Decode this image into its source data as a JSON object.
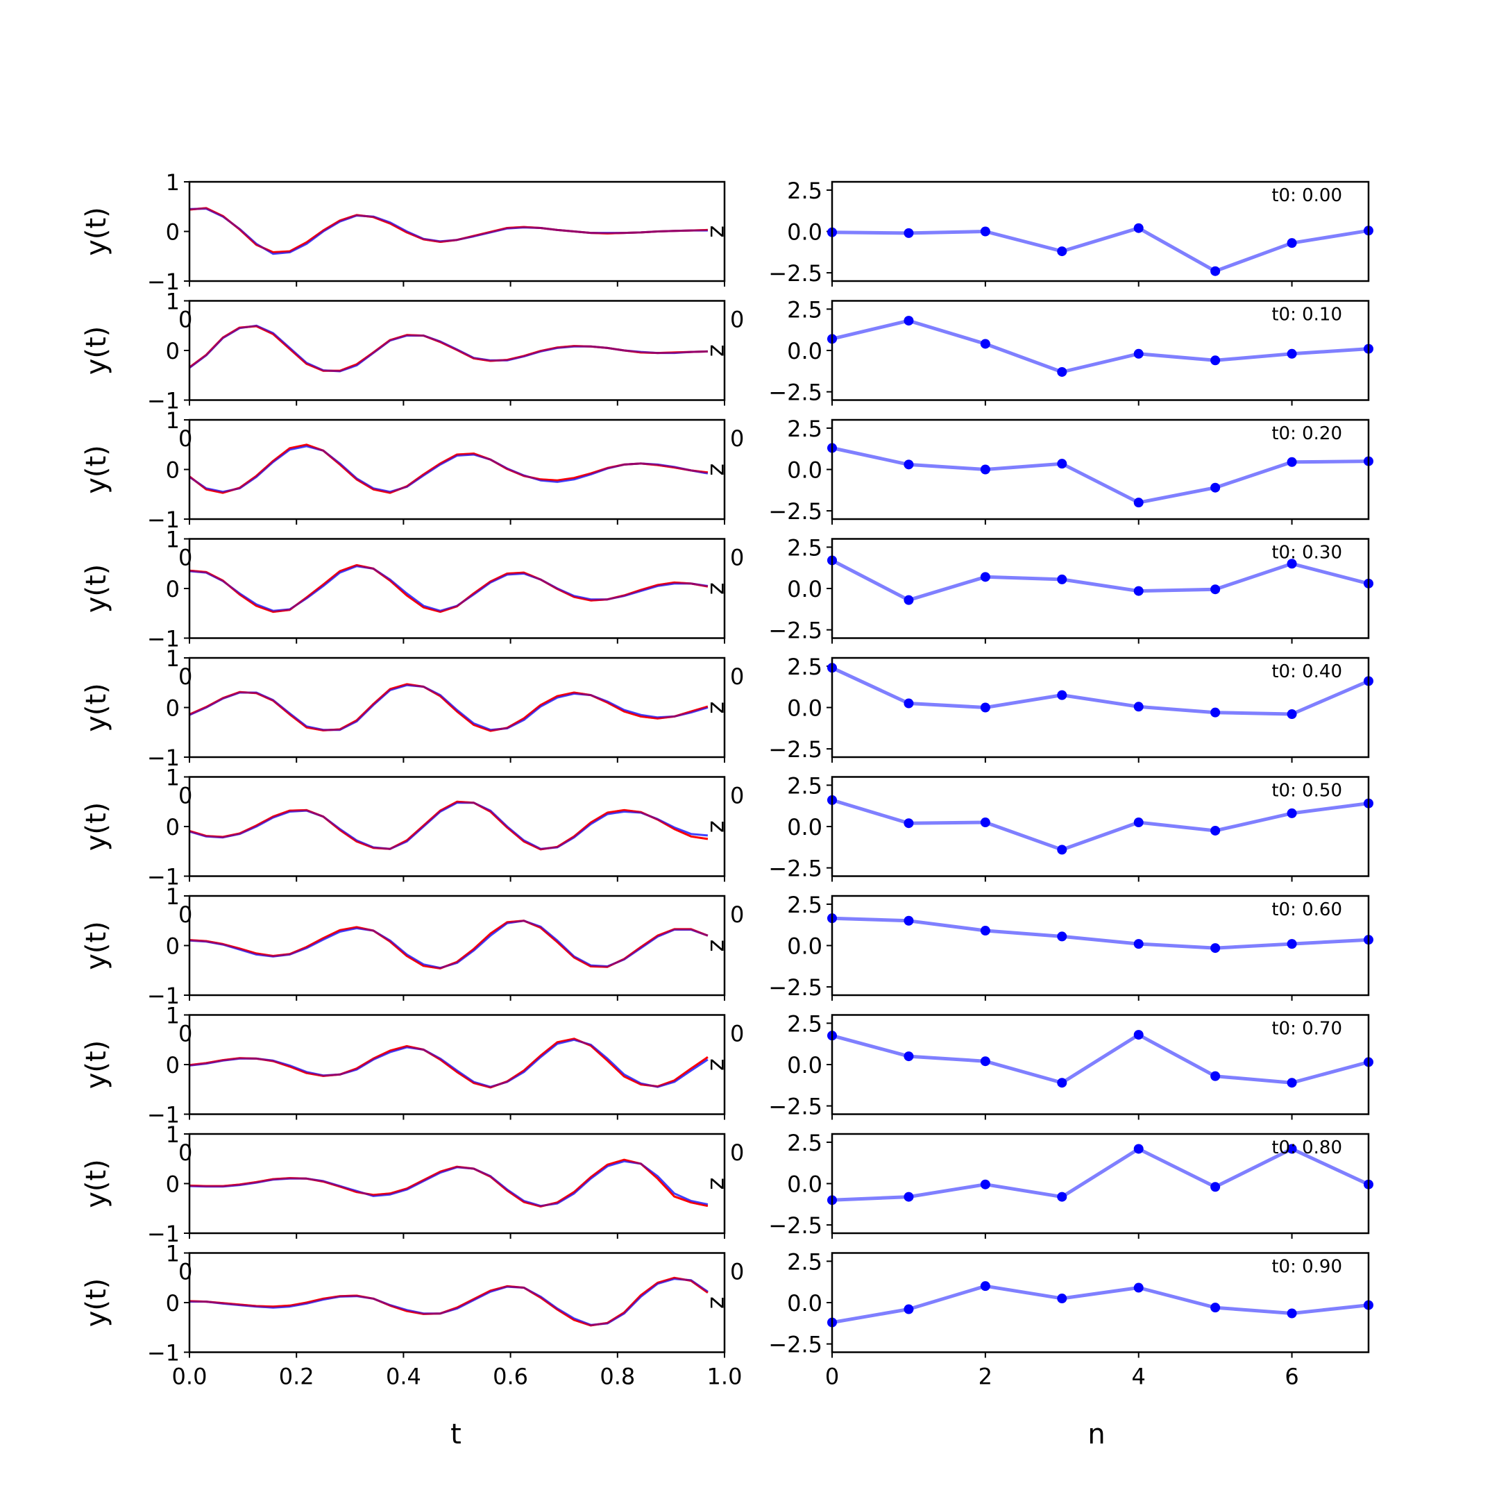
{
  "chart_data": [
    {
      "type": "line",
      "title": "",
      "xlabel": "t",
      "ylabel": "y(t)",
      "right_axis_label": "z",
      "x": [
        0.0,
        0.03125,
        0.0625,
        0.09375,
        0.125,
        0.15625,
        0.1875,
        0.21875,
        0.25,
        0.28125,
        0.3125,
        0.34375,
        0.375,
        0.40625,
        0.4375,
        0.46875,
        0.5,
        0.53125,
        0.5625,
        0.59375,
        0.625,
        0.65625,
        0.6875,
        0.71875,
        0.75,
        0.78125,
        0.8125,
        0.84375,
        0.875,
        0.90625,
        0.9375,
        0.96875
      ],
      "xlim": [
        0.0,
        1.0
      ],
      "ylim": [
        -1,
        1
      ],
      "xticks": [
        "0.0",
        "0.2",
        "0.4",
        "0.6",
        "0.8",
        "1.0"
      ],
      "yticks": [
        "-1",
        "0",
        "1"
      ],
      "series_colors": {
        "true": "#0000ff",
        "predicted": "#ff0000"
      },
      "panels": [
        {
          "true": [
            0.45,
            0.46,
            0.3,
            0.05,
            -0.25,
            -0.45,
            -0.42,
            -0.25,
            0.0,
            0.2,
            0.32,
            0.3,
            0.18,
            0.0,
            -0.15,
            -0.2,
            -0.17,
            -0.1,
            -0.02,
            0.06,
            0.08,
            0.07,
            0.03,
            0.0,
            -0.03,
            -0.03,
            -0.03,
            -0.02,
            0.0,
            0.01,
            0.02,
            0.02
          ],
          "predicted": [
            0.44,
            0.47,
            0.31,
            0.04,
            -0.27,
            -0.42,
            -0.4,
            -0.22,
            0.02,
            0.22,
            0.33,
            0.29,
            0.16,
            -0.02,
            -0.16,
            -0.21,
            -0.17,
            -0.09,
            -0.01,
            0.07,
            0.09,
            0.07,
            0.03,
            0.0,
            -0.03,
            -0.04,
            -0.03,
            -0.02,
            0.0,
            0.01,
            0.02,
            0.03
          ]
        },
        {
          "true": [
            -0.35,
            -0.1,
            0.25,
            0.45,
            0.5,
            0.35,
            0.05,
            -0.25,
            -0.4,
            -0.42,
            -0.3,
            -0.05,
            0.2,
            0.3,
            0.3,
            0.18,
            0.02,
            -0.15,
            -0.2,
            -0.2,
            -0.12,
            -0.02,
            0.05,
            0.08,
            0.08,
            0.05,
            0.0,
            -0.03,
            -0.05,
            -0.05,
            -0.03,
            -0.02
          ],
          "predicted": [
            -0.34,
            -0.09,
            0.26,
            0.46,
            0.49,
            0.33,
            0.03,
            -0.27,
            -0.41,
            -0.41,
            -0.28,
            -0.04,
            0.21,
            0.31,
            0.3,
            0.17,
            0.01,
            -0.16,
            -0.21,
            -0.19,
            -0.11,
            -0.01,
            0.06,
            0.09,
            0.08,
            0.05,
            0.0,
            -0.04,
            -0.05,
            -0.04,
            -0.03,
            -0.02
          ]
        },
        {
          "true": [
            -0.15,
            -0.38,
            -0.45,
            -0.38,
            -0.15,
            0.15,
            0.4,
            0.47,
            0.38,
            0.12,
            -0.18,
            -0.38,
            -0.45,
            -0.35,
            -0.12,
            0.1,
            0.28,
            0.3,
            0.2,
            0.02,
            -0.12,
            -0.22,
            -0.25,
            -0.2,
            -0.1,
            0.02,
            0.1,
            0.12,
            0.1,
            0.05,
            -0.02,
            -0.08
          ],
          "predicted": [
            -0.14,
            -0.4,
            -0.47,
            -0.37,
            -0.13,
            0.17,
            0.43,
            0.5,
            0.38,
            0.1,
            -0.2,
            -0.4,
            -0.47,
            -0.34,
            -0.1,
            0.12,
            0.3,
            0.32,
            0.2,
            0.01,
            -0.13,
            -0.2,
            -0.22,
            -0.17,
            -0.08,
            0.03,
            0.1,
            0.12,
            0.09,
            0.04,
            -0.02,
            -0.06
          ]
        },
        {
          "true": [
            0.35,
            0.32,
            0.15,
            -0.1,
            -0.32,
            -0.45,
            -0.42,
            -0.2,
            0.05,
            0.32,
            0.45,
            0.4,
            0.18,
            -0.1,
            -0.35,
            -0.45,
            -0.35,
            -0.12,
            0.12,
            0.28,
            0.3,
            0.18,
            0.0,
            -0.15,
            -0.22,
            -0.22,
            -0.15,
            -0.05,
            0.05,
            0.1,
            0.1,
            0.05
          ],
          "predicted": [
            0.36,
            0.33,
            0.16,
            -0.12,
            -0.35,
            -0.47,
            -0.43,
            -0.18,
            0.08,
            0.35,
            0.47,
            0.4,
            0.16,
            -0.14,
            -0.38,
            -0.47,
            -0.36,
            -0.1,
            0.14,
            0.3,
            0.32,
            0.18,
            -0.01,
            -0.17,
            -0.24,
            -0.22,
            -0.14,
            -0.03,
            0.07,
            0.12,
            0.1,
            0.04
          ]
        },
        {
          "true": [
            -0.15,
            0.0,
            0.18,
            0.3,
            0.3,
            0.15,
            -0.12,
            -0.38,
            -0.45,
            -0.45,
            -0.28,
            0.05,
            0.35,
            0.45,
            0.42,
            0.25,
            -0.05,
            -0.32,
            -0.45,
            -0.42,
            -0.25,
            0.02,
            0.2,
            0.28,
            0.25,
            0.12,
            -0.05,
            -0.15,
            -0.2,
            -0.18,
            -0.1,
            0.0
          ],
          "predicted": [
            -0.14,
            0.01,
            0.19,
            0.31,
            0.29,
            0.14,
            -0.14,
            -0.4,
            -0.46,
            -0.44,
            -0.26,
            0.07,
            0.37,
            0.47,
            0.42,
            0.23,
            -0.08,
            -0.35,
            -0.47,
            -0.41,
            -0.22,
            0.05,
            0.23,
            0.3,
            0.25,
            0.1,
            -0.08,
            -0.18,
            -0.22,
            -0.18,
            -0.08,
            0.02
          ]
        },
        {
          "true": [
            -0.1,
            -0.2,
            -0.22,
            -0.15,
            0.0,
            0.18,
            0.3,
            0.32,
            0.2,
            -0.05,
            -0.28,
            -0.42,
            -0.45,
            -0.3,
            0.0,
            0.3,
            0.48,
            0.48,
            0.32,
            0.0,
            -0.28,
            -0.45,
            -0.42,
            -0.22,
            0.05,
            0.25,
            0.3,
            0.28,
            0.15,
            -0.02,
            -0.15,
            -0.18
          ],
          "predicted": [
            -0.09,
            -0.19,
            -0.21,
            -0.14,
            0.02,
            0.2,
            0.32,
            0.33,
            0.2,
            -0.07,
            -0.3,
            -0.43,
            -0.45,
            -0.28,
            0.02,
            0.32,
            0.5,
            0.48,
            0.3,
            -0.02,
            -0.3,
            -0.46,
            -0.41,
            -0.2,
            0.08,
            0.28,
            0.33,
            0.29,
            0.14,
            -0.05,
            -0.2,
            -0.25
          ]
        },
        {
          "true": [
            0.1,
            0.08,
            0.02,
            -0.08,
            -0.18,
            -0.22,
            -0.18,
            -0.05,
            0.12,
            0.28,
            0.35,
            0.3,
            0.1,
            -0.18,
            -0.38,
            -0.45,
            -0.35,
            -0.1,
            0.2,
            0.45,
            0.5,
            0.38,
            0.1,
            -0.22,
            -0.4,
            -0.42,
            -0.28,
            -0.05,
            0.18,
            0.32,
            0.32,
            0.2
          ],
          "predicted": [
            0.11,
            0.09,
            0.03,
            -0.06,
            -0.16,
            -0.21,
            -0.17,
            -0.03,
            0.15,
            0.31,
            0.37,
            0.3,
            0.08,
            -0.21,
            -0.41,
            -0.46,
            -0.33,
            -0.07,
            0.24,
            0.47,
            0.5,
            0.36,
            0.07,
            -0.24,
            -0.42,
            -0.43,
            -0.27,
            -0.03,
            0.2,
            0.33,
            0.33,
            0.2
          ]
        },
        {
          "true": [
            -0.02,
            0.02,
            0.08,
            0.12,
            0.12,
            0.08,
            -0.02,
            -0.15,
            -0.22,
            -0.2,
            -0.1,
            0.1,
            0.25,
            0.35,
            0.3,
            0.12,
            -0.12,
            -0.35,
            -0.45,
            -0.35,
            -0.15,
            0.15,
            0.42,
            0.5,
            0.4,
            0.12,
            -0.2,
            -0.38,
            -0.45,
            -0.35,
            -0.12,
            0.1
          ],
          "predicted": [
            -0.01,
            0.03,
            0.09,
            0.13,
            0.12,
            0.07,
            -0.04,
            -0.17,
            -0.23,
            -0.2,
            -0.08,
            0.12,
            0.28,
            0.37,
            0.3,
            0.1,
            -0.15,
            -0.37,
            -0.46,
            -0.34,
            -0.12,
            0.18,
            0.45,
            0.52,
            0.38,
            0.08,
            -0.24,
            -0.4,
            -0.44,
            -0.32,
            -0.08,
            0.15
          ]
        },
        {
          "true": [
            -0.05,
            -0.06,
            -0.06,
            -0.03,
            0.02,
            0.08,
            0.1,
            0.1,
            0.05,
            -0.05,
            -0.15,
            -0.25,
            -0.22,
            -0.12,
            0.05,
            0.22,
            0.33,
            0.3,
            0.15,
            -0.12,
            -0.35,
            -0.45,
            -0.4,
            -0.2,
            0.1,
            0.35,
            0.45,
            0.4,
            0.15,
            -0.2,
            -0.35,
            -0.42
          ],
          "predicted": [
            -0.04,
            -0.05,
            -0.05,
            -0.02,
            0.03,
            0.09,
            0.11,
            0.1,
            0.04,
            -0.06,
            -0.17,
            -0.23,
            -0.2,
            -0.1,
            0.07,
            0.24,
            0.34,
            0.3,
            0.14,
            -0.14,
            -0.37,
            -0.46,
            -0.38,
            -0.17,
            0.13,
            0.38,
            0.48,
            0.4,
            0.1,
            -0.26,
            -0.38,
            -0.45
          ]
        },
        {
          "true": [
            0.02,
            0.02,
            -0.02,
            -0.05,
            -0.08,
            -0.1,
            -0.08,
            -0.02,
            0.06,
            0.12,
            0.13,
            0.08,
            -0.05,
            -0.15,
            -0.22,
            -0.22,
            -0.12,
            0.05,
            0.22,
            0.32,
            0.3,
            0.12,
            -0.12,
            -0.32,
            -0.45,
            -0.42,
            -0.22,
            0.12,
            0.38,
            0.48,
            0.45,
            0.22
          ],
          "predicted": [
            0.03,
            0.02,
            -0.01,
            -0.04,
            -0.07,
            -0.08,
            -0.06,
            0.0,
            0.08,
            0.13,
            0.14,
            0.08,
            -0.06,
            -0.17,
            -0.23,
            -0.22,
            -0.1,
            0.07,
            0.24,
            0.33,
            0.3,
            0.1,
            -0.14,
            -0.35,
            -0.46,
            -0.41,
            -0.2,
            0.15,
            0.4,
            0.5,
            0.44,
            0.2
          ]
        }
      ]
    },
    {
      "type": "line",
      "title": "",
      "xlabel": "n",
      "ylabel": "",
      "x": [
        0,
        1,
        2,
        3,
        4,
        5,
        6,
        7
      ],
      "xlim": [
        0,
        7
      ],
      "ylim": [
        -3,
        3
      ],
      "xticks": [
        "0",
        "2",
        "4",
        "6"
      ],
      "yticks": [
        "2.5",
        "0.0",
        "-2.5"
      ],
      "line_color": "#7f7fff",
      "marker_color": "#0000ff",
      "panels": [
        {
          "label": "t0: 0.00",
          "values": [
            -0.05,
            -0.1,
            0.0,
            -1.2,
            0.2,
            -2.4,
            -0.7,
            0.05
          ]
        },
        {
          "label": "t0: 0.10",
          "values": [
            0.7,
            1.8,
            0.4,
            -1.3,
            -0.2,
            -0.6,
            -0.2,
            0.1
          ]
        },
        {
          "label": "t0: 0.20",
          "values": [
            1.3,
            0.3,
            0.0,
            0.35,
            -2.0,
            -1.1,
            0.45,
            0.5
          ]
        },
        {
          "label": "t0: 0.30",
          "values": [
            1.7,
            -0.7,
            0.7,
            0.55,
            -0.15,
            -0.05,
            1.5,
            0.3
          ]
        },
        {
          "label": "t0: 0.40",
          "values": [
            2.4,
            0.25,
            0.0,
            0.75,
            0.05,
            -0.3,
            -0.4,
            1.6
          ]
        },
        {
          "label": "t0: 0.50",
          "values": [
            1.6,
            0.2,
            0.25,
            -1.4,
            0.25,
            -0.25,
            0.8,
            1.4
          ]
        },
        {
          "label": "t0: 0.60",
          "values": [
            1.65,
            1.5,
            0.9,
            0.55,
            0.1,
            -0.15,
            0.1,
            0.35
          ]
        },
        {
          "label": "t0: 0.70",
          "values": [
            1.75,
            0.5,
            0.2,
            -1.1,
            1.8,
            -0.7,
            -1.1,
            0.15
          ]
        },
        {
          "label": "t0: 0.80",
          "values": [
            -1.0,
            -0.8,
            -0.05,
            -0.8,
            2.1,
            -0.2,
            2.1,
            -0.05
          ]
        },
        {
          "label": "t0: 0.90",
          "values": [
            -1.2,
            -0.4,
            1.0,
            0.25,
            0.9,
            -0.3,
            -0.65,
            -0.15
          ]
        }
      ]
    }
  ]
}
